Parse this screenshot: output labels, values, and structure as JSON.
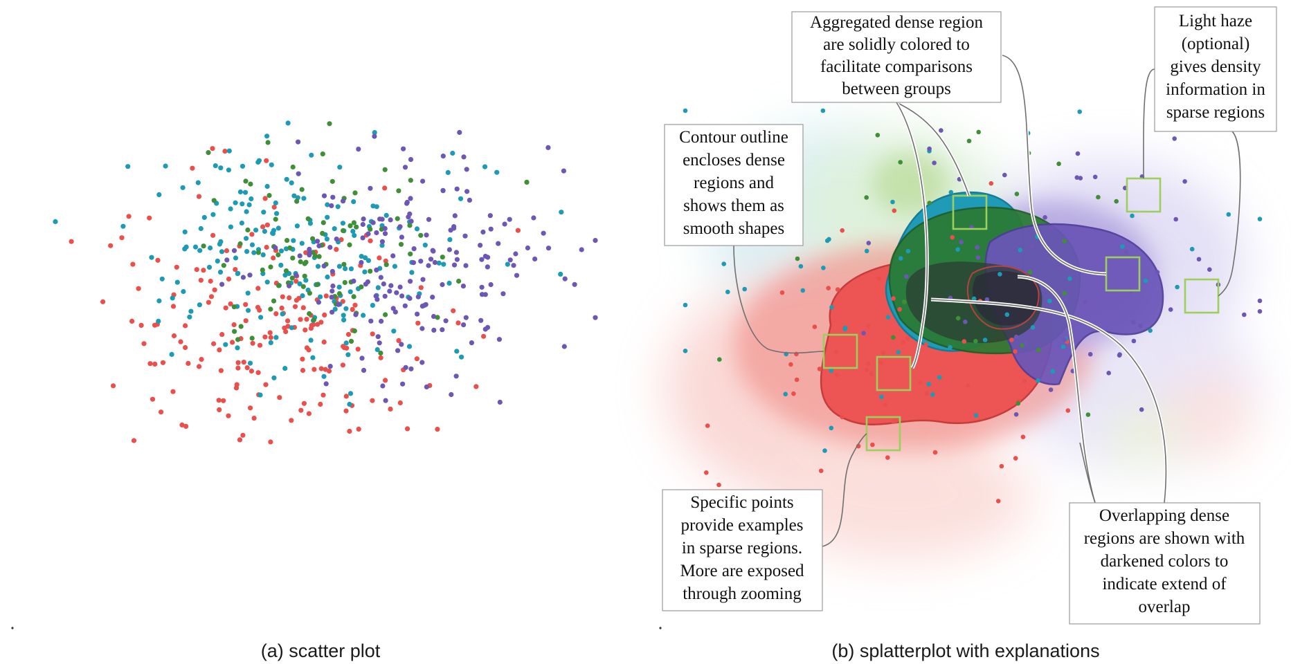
{
  "colors": {
    "red": "#ea4f4b",
    "cyan": "#1d9bb4",
    "green": "#3f8f36",
    "purple": "#6d56b5",
    "marker_box": "#9ccf5c",
    "leader": "#6f6f6f"
  },
  "panels": {
    "a": {
      "caption": "(a) scatter plot"
    },
    "b": {
      "caption": "(b) splatterplot with explanations"
    }
  },
  "annotations": [
    {
      "id": "aggregated",
      "lines": [
        "Aggregated dense region",
        "are solidly colored to",
        "facilitate comparisons",
        "between groups"
      ]
    },
    {
      "id": "haze",
      "lines": [
        "Light haze",
        "(optional)",
        "gives density",
        "information in",
        "sparse regions"
      ]
    },
    {
      "id": "contour",
      "lines": [
        "Contour outline",
        "encloses dense",
        "regions and",
        "shows them as",
        "smooth shapes"
      ]
    },
    {
      "id": "specific",
      "lines": [
        "Specific points",
        "provide examples",
        "in sparse regions.",
        "More are exposed",
        "through zooming"
      ]
    },
    {
      "id": "overlap",
      "lines": [
        "Overlapping dense",
        "regions are shown with",
        "darkened colors to",
        "indicate extend of",
        "overlap"
      ]
    }
  ],
  "chart_data": [
    {
      "type": "scatter",
      "panel": "a",
      "title": "(a) scatter plot",
      "xlabel": "",
      "ylabel": "",
      "grid": false,
      "series_colors": [
        "#ea4f4b",
        "#1d9bb4",
        "#3f8f36",
        "#6d56b5"
      ],
      "point_count_estimate": 700
    },
    {
      "type": "scatter",
      "panel": "b",
      "title": "(b) splatterplot with explanations",
      "xlabel": "",
      "ylabel": "",
      "grid": false,
      "series_colors": [
        "#ea4f4b",
        "#1d9bb4",
        "#3f8f36",
        "#6d56b5"
      ]
    }
  ]
}
